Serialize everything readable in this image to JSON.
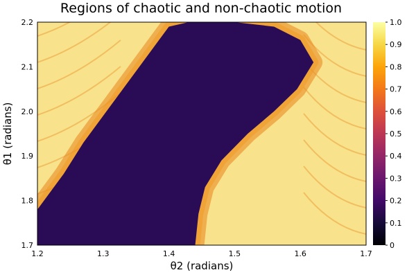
{
  "chart_data": {
    "type": "heatmap",
    "title": "Regions of chaotic and non-chaotic motion",
    "xlabel": "θ2 (radians)",
    "ylabel": "θ1 (radians)",
    "xlim": [
      1.2,
      1.7
    ],
    "ylim": [
      1.7,
      2.2
    ],
    "xticks": [
      "1.2",
      "1.3",
      "1.4",
      "1.5",
      "1.6",
      "1.7"
    ],
    "yticks": [
      "1.7",
      "1.8",
      "1.9",
      "2.0",
      "2.1",
      "2.2"
    ],
    "colorbar": {
      "range": [
        0,
        1
      ],
      "ticks": [
        "0",
        "0.1",
        "0.2",
        "0.3",
        "0.4",
        "0.5",
        "0.6",
        "0.7",
        "0.8",
        "0.9",
        "1.0"
      ],
      "colormap": "inferno"
    },
    "regions": {
      "non_chaotic_value": 0.15,
      "chaotic_value": 0.9,
      "non_chaotic_boundary": [
        [
          1.2,
          1.78
        ],
        [
          1.24,
          1.86
        ],
        [
          1.27,
          1.93
        ],
        [
          1.3,
          1.99
        ],
        [
          1.33,
          2.05
        ],
        [
          1.36,
          2.11
        ],
        [
          1.385,
          2.16
        ],
        [
          1.4,
          2.19
        ],
        [
          1.43,
          2.2
        ],
        [
          1.5,
          2.2
        ],
        [
          1.56,
          2.19
        ],
        [
          1.6,
          2.16
        ],
        [
          1.62,
          2.11
        ],
        [
          1.595,
          2.05
        ],
        [
          1.56,
          2.0
        ],
        [
          1.52,
          1.95
        ],
        [
          1.48,
          1.89
        ],
        [
          1.455,
          1.83
        ],
        [
          1.445,
          1.77
        ],
        [
          1.44,
          1.7
        ],
        [
          1.2,
          1.7
        ]
      ]
    }
  }
}
